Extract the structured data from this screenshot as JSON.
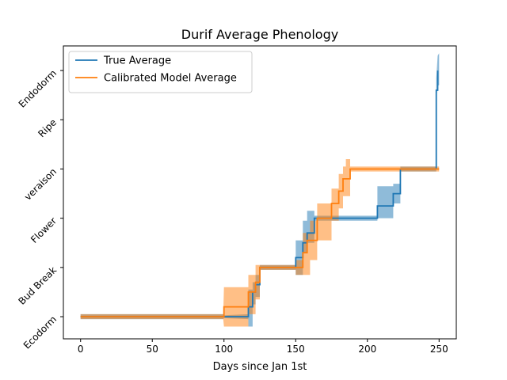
{
  "chart_data": {
    "type": "line",
    "title": "Durif Average Phenology",
    "xlabel": "Days since Jan 1st",
    "ylabel": "",
    "xlim": [
      -12,
      262
    ],
    "ylim": [
      -0.45,
      5.5
    ],
    "xticks": [
      0,
      50,
      100,
      150,
      200,
      250
    ],
    "yticks": [
      0,
      1,
      2,
      3,
      4,
      5
    ],
    "ytick_labels": [
      "Ecodorm",
      "Bud Break",
      "Flower",
      "veraison",
      "Ripe",
      "Endodorm"
    ],
    "grid": false,
    "legend": "top-left",
    "series": [
      {
        "name": "True Average",
        "color": "#1f77b4",
        "points": [
          [
            0,
            0
          ],
          [
            100,
            0
          ],
          [
            117,
            0
          ],
          [
            117,
            0.2
          ],
          [
            120,
            0.2
          ],
          [
            120,
            0.5
          ],
          [
            122,
            0.5
          ],
          [
            122,
            0.65
          ],
          [
            125,
            0.65
          ],
          [
            125,
            1
          ],
          [
            150,
            1
          ],
          [
            150,
            1.2
          ],
          [
            152,
            1.2
          ],
          [
            152,
            1.2
          ],
          [
            155,
            1.2
          ],
          [
            155,
            1.5
          ],
          [
            158,
            1.5
          ],
          [
            158,
            1.7
          ],
          [
            160,
            1.7
          ],
          [
            160,
            1.7
          ],
          [
            163,
            1.7
          ],
          [
            163,
            2
          ],
          [
            207,
            2
          ],
          [
            207,
            2.25
          ],
          [
            218,
            2.25
          ],
          [
            218,
            2.5
          ],
          [
            223,
            2.5
          ],
          [
            223,
            3
          ],
          [
            248,
            3
          ],
          [
            248,
            4.6
          ],
          [
            249,
            4.6
          ],
          [
            249,
            5
          ]
        ],
        "band": [
          [
            0,
            -0.05,
            0.05
          ],
          [
            99.5,
            -0.05,
            0.05
          ],
          [
            100,
            -0.03,
            0.03
          ],
          [
            117,
            -0.05,
            0.05
          ],
          [
            117,
            -0.2,
            0.55
          ],
          [
            120,
            -0.2,
            0.55
          ],
          [
            120,
            0.25,
            0.7
          ],
          [
            122,
            0.25,
            0.7
          ],
          [
            122,
            0.4,
            0.85
          ],
          [
            125,
            0.4,
            0.85
          ],
          [
            125,
            0.95,
            1.05
          ],
          [
            150,
            0.95,
            1.05
          ],
          [
            150,
            0.85,
            1.55
          ],
          [
            155,
            0.85,
            1.55
          ],
          [
            155,
            1.3,
            1.95
          ],
          [
            158,
            1.3,
            1.95
          ],
          [
            158,
            1.5,
            2.15
          ],
          [
            163,
            1.5,
            2.15
          ],
          [
            163,
            1.95,
            2.05
          ],
          [
            207,
            1.95,
            2.05
          ],
          [
            207,
            2,
            2.65
          ],
          [
            218,
            2,
            2.65
          ],
          [
            218,
            2.3,
            2.7
          ],
          [
            223,
            2.3,
            2.7
          ],
          [
            223,
            2.95,
            3.05
          ],
          [
            248,
            2.95,
            3.05
          ],
          [
            248,
            4.4,
            4.85
          ],
          [
            249,
            4.7,
            5.3
          ],
          [
            250,
            4.7,
            5.35
          ]
        ]
      },
      {
        "name": "Calibrated Model Average",
        "color": "#ff7f0e",
        "points": [
          [
            0,
            0
          ],
          [
            100,
            0
          ],
          [
            100,
            0.2
          ],
          [
            117,
            0.2
          ],
          [
            117,
            0.5
          ],
          [
            122,
            0.5
          ],
          [
            122,
            0.7
          ],
          [
            125,
            0.7
          ],
          [
            125,
            1
          ],
          [
            150,
            1
          ],
          [
            150,
            1
          ],
          [
            155,
            1
          ],
          [
            155,
            1.3
          ],
          [
            158,
            1.3
          ],
          [
            158,
            1.55
          ],
          [
            160,
            1.55
          ],
          [
            160,
            1.55
          ],
          [
            165,
            1.55
          ],
          [
            165,
            2
          ],
          [
            175,
            2
          ],
          [
            175,
            2.3
          ],
          [
            180,
            2.3
          ],
          [
            180,
            2.55
          ],
          [
            183,
            2.55
          ],
          [
            183,
            2.8
          ],
          [
            185,
            2.8
          ],
          [
            185,
            2.8
          ],
          [
            188,
            2.8
          ],
          [
            188,
            3
          ],
          [
            250,
            3
          ]
        ],
        "band": [
          [
            0,
            -0.05,
            0.05
          ],
          [
            99.5,
            -0.05,
            0.05
          ],
          [
            100,
            -0.2,
            0.6
          ],
          [
            117,
            -0.2,
            0.6
          ],
          [
            117,
            0.05,
            0.85
          ],
          [
            122,
            0.05,
            0.85
          ],
          [
            122,
            0.35,
            1.05
          ],
          [
            125,
            0.35,
            1.05
          ],
          [
            125,
            0.95,
            1.05
          ],
          [
            150,
            0.95,
            1.05
          ],
          [
            150,
            0.85,
            1.15
          ],
          [
            155,
            0.85,
            1.15
          ],
          [
            155,
            0.85,
            1.7
          ],
          [
            160,
            0.85,
            1.7
          ],
          [
            160,
            1.15,
            1.95
          ],
          [
            165,
            1.15,
            1.95
          ],
          [
            165,
            1.55,
            2.3
          ],
          [
            175,
            1.55,
            2.3
          ],
          [
            175,
            1.95,
            2.6
          ],
          [
            180,
            1.95,
            2.6
          ],
          [
            180,
            2.2,
            2.9
          ],
          [
            183,
            2.2,
            2.9
          ],
          [
            183,
            2.45,
            3.05
          ],
          [
            185,
            2.45,
            3.05
          ],
          [
            185,
            2.45,
            3.2
          ],
          [
            188,
            2.45,
            3.2
          ],
          [
            188,
            2.95,
            3.05
          ],
          [
            250,
            2.95,
            3.05
          ]
        ]
      }
    ]
  }
}
